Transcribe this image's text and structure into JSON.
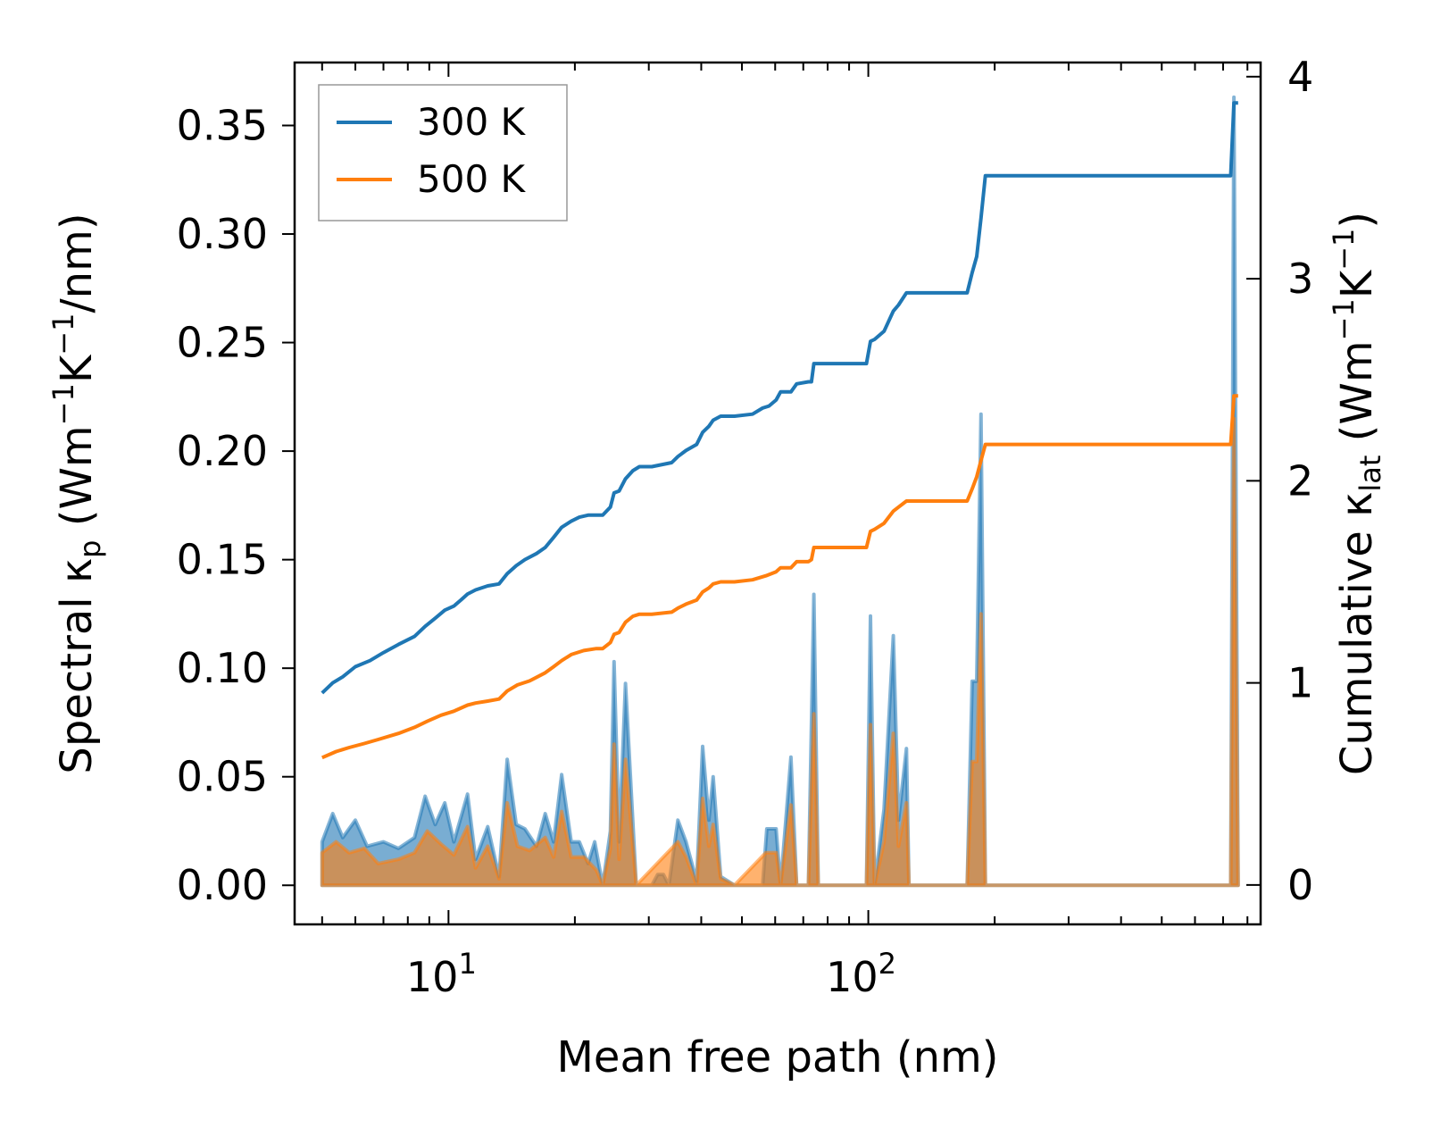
{
  "chart_data": {
    "type": "line",
    "xlabel": "Mean free path (nm)",
    "xscale": "log",
    "xlim": [
      4.3,
      860
    ],
    "xticks": [
      {
        "value": 10,
        "base": "10",
        "exp": "1"
      },
      {
        "value": 100,
        "base": "10",
        "exp": "2"
      }
    ],
    "ylabel_left": {
      "prefix": "Spectral κ",
      "sub": "p",
      "mid": " (Wm",
      "sup1": "−1",
      "mid2": "K",
      "sup2": "−1",
      "suffix": "/nm)"
    },
    "ylabel_right": {
      "prefix": "Cumulative κ",
      "sub": "lat",
      "mid": " (Wm",
      "sup1": "−1",
      "mid2": "K",
      "sup2": "−1",
      "suffix": ")"
    },
    "ylim_left": [
      -0.018,
      0.379
    ],
    "ylim_right": [
      -0.195,
      4.07
    ],
    "yticks_left": [
      "0.00",
      "0.05",
      "0.10",
      "0.15",
      "0.20",
      "0.25",
      "0.30",
      "0.35"
    ],
    "yticks_right": [
      "0",
      "1",
      "2",
      "3",
      "4"
    ],
    "legend": {
      "position": "upper-left",
      "entries": [
        "300 K",
        "500 K"
      ]
    },
    "colors": {
      "300 K": "#1f77b4",
      "500 K": "#ff7f0e"
    },
    "spectral": [
      {
        "name": "300 K",
        "points": [
          [
            5,
            0.02
          ],
          [
            5.3,
            0.033
          ],
          [
            5.6,
            0.022
          ],
          [
            6,
            0.03
          ],
          [
            6.4,
            0.018
          ],
          [
            7,
            0.02
          ],
          [
            7.6,
            0.017
          ],
          [
            8.3,
            0.022
          ],
          [
            8.8,
            0.041
          ],
          [
            9.3,
            0.028
          ],
          [
            9.8,
            0.038
          ],
          [
            10.3,
            0.02
          ],
          [
            11.1,
            0.042
          ],
          [
            11.6,
            0.012
          ],
          [
            12.4,
            0.027
          ],
          [
            13.2,
            0.004
          ],
          [
            13.8,
            0.058
          ],
          [
            14.5,
            0.028
          ],
          [
            15.2,
            0.026
          ],
          [
            16.2,
            0.018
          ],
          [
            17,
            0.033
          ],
          [
            17.8,
            0.02
          ],
          [
            18.6,
            0.051
          ],
          [
            19.6,
            0.02
          ],
          [
            20.5,
            0.02
          ],
          [
            21.5,
            0.01
          ],
          [
            22.3,
            0.02
          ],
          [
            23.3,
            0
          ],
          [
            24.3,
            0.025
          ],
          [
            24.8,
            0.103
          ],
          [
            25.5,
            0.02
          ],
          [
            26.4,
            0.093
          ],
          [
            28,
            0.0
          ],
          [
            30.5,
            0
          ],
          [
            31.5,
            0.005
          ],
          [
            32.5,
            0.005
          ],
          [
            33.5,
            0
          ],
          [
            35.2,
            0.03
          ],
          [
            36.8,
            0.02
          ],
          [
            39,
            0.002
          ],
          [
            40.3,
            0.064
          ],
          [
            41.7,
            0.03
          ],
          [
            42.7,
            0.05
          ],
          [
            44.5,
            0.004
          ],
          [
            48,
            0
          ],
          [
            56,
            0
          ],
          [
            57.3,
            0.026
          ],
          [
            60.3,
            0.026
          ],
          [
            61.8,
            0
          ],
          [
            65.4,
            0.059
          ],
          [
            67.5,
            0
          ],
          [
            72,
            0
          ],
          [
            74.2,
            0.134
          ],
          [
            76,
            0
          ],
          [
            99,
            0
          ],
          [
            101.2,
            0.124
          ],
          [
            103.5,
            0
          ],
          [
            109,
            0.035
          ],
          [
            114.7,
            0.115
          ],
          [
            118,
            0.03
          ],
          [
            123.3,
            0.063
          ],
          [
            125,
            0
          ],
          [
            172,
            0
          ],
          [
            176.8,
            0.094
          ],
          [
            181.2,
            0.094
          ],
          [
            185.5,
            0.217
          ],
          [
            190,
            0
          ],
          [
            730,
            0
          ],
          [
            743,
            0.363
          ],
          [
            760,
            0
          ]
        ]
      },
      {
        "name": "500 K",
        "points": [
          [
            5,
            0.015
          ],
          [
            5.4,
            0.02
          ],
          [
            5.8,
            0.015
          ],
          [
            6.3,
            0.017
          ],
          [
            6.8,
            0.01
          ],
          [
            7.6,
            0.012
          ],
          [
            8.3,
            0.015
          ],
          [
            8.9,
            0.025
          ],
          [
            9.6,
            0.019
          ],
          [
            10.3,
            0.014
          ],
          [
            11.1,
            0.027
          ],
          [
            11.6,
            0.008
          ],
          [
            12.4,
            0.018
          ],
          [
            13.2,
            0.003
          ],
          [
            13.8,
            0.038
          ],
          [
            14.6,
            0.018
          ],
          [
            15.6,
            0.016
          ],
          [
            17,
            0.022
          ],
          [
            17.8,
            0.013
          ],
          [
            18.6,
            0.034
          ],
          [
            19.6,
            0.013
          ],
          [
            21,
            0.013
          ],
          [
            22.5,
            0.007
          ],
          [
            23.3,
            0
          ],
          [
            24.3,
            0.017
          ],
          [
            24.8,
            0.065
          ],
          [
            25.5,
            0.012
          ],
          [
            26.4,
            0.058
          ],
          [
            28,
            0
          ],
          [
            35.2,
            0.02
          ],
          [
            36.8,
            0.013
          ],
          [
            39,
            0
          ],
          [
            40.3,
            0.04
          ],
          [
            41.7,
            0.018
          ],
          [
            42.7,
            0.028
          ],
          [
            44.5,
            0.003
          ],
          [
            48,
            0
          ],
          [
            57,
            0.015
          ],
          [
            60.3,
            0.015
          ],
          [
            61.8,
            0
          ],
          [
            65.4,
            0.037
          ],
          [
            67.5,
            0
          ],
          [
            72,
            0
          ],
          [
            74.2,
            0.079
          ],
          [
            76,
            0
          ],
          [
            99,
            0
          ],
          [
            101.2,
            0.074
          ],
          [
            103.5,
            0
          ],
          [
            109,
            0.02
          ],
          [
            114.7,
            0.07
          ],
          [
            118,
            0.018
          ],
          [
            123.3,
            0.038
          ],
          [
            125,
            0
          ],
          [
            172,
            0
          ],
          [
            176.8,
            0.057
          ],
          [
            181.2,
            0.057
          ],
          [
            185.5,
            0.125
          ],
          [
            190,
            0
          ],
          [
            730,
            0
          ],
          [
            743,
            0.215
          ],
          [
            760,
            0
          ]
        ]
      }
    ],
    "cumulative": [
      {
        "name": "300 K",
        "points": [
          [
            5,
            0.95
          ],
          [
            5.3,
            1.0
          ],
          [
            5.6,
            1.03
          ],
          [
            6,
            1.08
          ],
          [
            6.5,
            1.11
          ],
          [
            7,
            1.15
          ],
          [
            7.6,
            1.19
          ],
          [
            8.3,
            1.23
          ],
          [
            8.8,
            1.28
          ],
          [
            9.3,
            1.32
          ],
          [
            9.8,
            1.36
          ],
          [
            10.3,
            1.38
          ],
          [
            10.7,
            1.41
          ],
          [
            11.1,
            1.44
          ],
          [
            11.6,
            1.46
          ],
          [
            12.4,
            1.48
          ],
          [
            13.2,
            1.49
          ],
          [
            13.8,
            1.54
          ],
          [
            14.5,
            1.58
          ],
          [
            15.2,
            1.61
          ],
          [
            16.2,
            1.64
          ],
          [
            17,
            1.67
          ],
          [
            17.8,
            1.72
          ],
          [
            18.6,
            1.77
          ],
          [
            19.6,
            1.8
          ],
          [
            20.5,
            1.82
          ],
          [
            21.5,
            1.83
          ],
          [
            23.3,
            1.83
          ],
          [
            24.3,
            1.87
          ],
          [
            24.8,
            1.94
          ],
          [
            25.5,
            1.95
          ],
          [
            26.4,
            2.01
          ],
          [
            27.5,
            2.05
          ],
          [
            28.5,
            2.07
          ],
          [
            30.5,
            2.07
          ],
          [
            34,
            2.09
          ],
          [
            35.2,
            2.12
          ],
          [
            36.8,
            2.15
          ],
          [
            39,
            2.18
          ],
          [
            40.3,
            2.24
          ],
          [
            41.7,
            2.27
          ],
          [
            42.7,
            2.3
          ],
          [
            44.5,
            2.32
          ],
          [
            48,
            2.32
          ],
          [
            53,
            2.33
          ],
          [
            56,
            2.36
          ],
          [
            58,
            2.37
          ],
          [
            60.3,
            2.4
          ],
          [
            61.8,
            2.44
          ],
          [
            65.4,
            2.44
          ],
          [
            67.5,
            2.48
          ],
          [
            72,
            2.49
          ],
          [
            73.2,
            2.49
          ],
          [
            74.2,
            2.58
          ],
          [
            99,
            2.58
          ],
          [
            101.2,
            2.69
          ],
          [
            103.5,
            2.7
          ],
          [
            109,
            2.74
          ],
          [
            114.7,
            2.84
          ],
          [
            118,
            2.87
          ],
          [
            123.3,
            2.93
          ],
          [
            125,
            2.93
          ],
          [
            172,
            2.93
          ],
          [
            176.8,
            3.03
          ],
          [
            181.2,
            3.11
          ],
          [
            185.5,
            3.3
          ],
          [
            190,
            3.51
          ],
          [
            730,
            3.51
          ],
          [
            743,
            3.87
          ],
          [
            760,
            3.87
          ]
        ]
      },
      {
        "name": "500 K",
        "points": [
          [
            5,
            0.63
          ],
          [
            5.4,
            0.66
          ],
          [
            5.8,
            0.68
          ],
          [
            6.3,
            0.7
          ],
          [
            6.8,
            0.72
          ],
          [
            7.6,
            0.75
          ],
          [
            8.3,
            0.78
          ],
          [
            8.9,
            0.81
          ],
          [
            9.6,
            0.84
          ],
          [
            10.3,
            0.86
          ],
          [
            11.1,
            0.89
          ],
          [
            11.6,
            0.9
          ],
          [
            12.4,
            0.91
          ],
          [
            13.2,
            0.92
          ],
          [
            13.8,
            0.96
          ],
          [
            14.6,
            0.99
          ],
          [
            15.6,
            1.01
          ],
          [
            17,
            1.05
          ],
          [
            17.8,
            1.08
          ],
          [
            18.6,
            1.11
          ],
          [
            19.6,
            1.14
          ],
          [
            21,
            1.16
          ],
          [
            22.5,
            1.17
          ],
          [
            23.3,
            1.17
          ],
          [
            24.3,
            1.2
          ],
          [
            24.8,
            1.24
          ],
          [
            25.5,
            1.25
          ],
          [
            26.4,
            1.3
          ],
          [
            27.5,
            1.33
          ],
          [
            28.5,
            1.34
          ],
          [
            30.5,
            1.34
          ],
          [
            34,
            1.35
          ],
          [
            35.2,
            1.37
          ],
          [
            36.8,
            1.39
          ],
          [
            39,
            1.41
          ],
          [
            40.3,
            1.45
          ],
          [
            41.7,
            1.47
          ],
          [
            42.7,
            1.49
          ],
          [
            44.5,
            1.5
          ],
          [
            48,
            1.5
          ],
          [
            53,
            1.51
          ],
          [
            57,
            1.53
          ],
          [
            60.3,
            1.55
          ],
          [
            61.8,
            1.57
          ],
          [
            65.4,
            1.57
          ],
          [
            67.5,
            1.6
          ],
          [
            72,
            1.6
          ],
          [
            73.2,
            1.61
          ],
          [
            74.2,
            1.67
          ],
          [
            99,
            1.67
          ],
          [
            101.2,
            1.75
          ],
          [
            103.5,
            1.76
          ],
          [
            109,
            1.79
          ],
          [
            114.7,
            1.85
          ],
          [
            118,
            1.87
          ],
          [
            123.3,
            1.9
          ],
          [
            125,
            1.9
          ],
          [
            172,
            1.9
          ],
          [
            176.8,
            1.96
          ],
          [
            181.2,
            2.02
          ],
          [
            185.5,
            2.1
          ],
          [
            190,
            2.18
          ],
          [
            730,
            2.18
          ],
          [
            743,
            2.42
          ],
          [
            760,
            2.42
          ]
        ]
      }
    ]
  }
}
